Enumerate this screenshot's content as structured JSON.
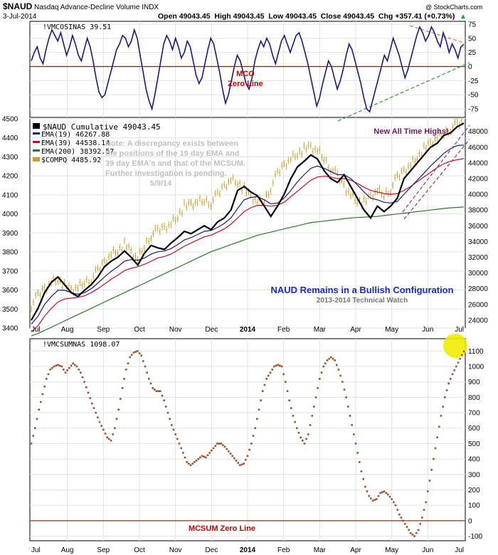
{
  "header": {
    "symbol": "$NAUD",
    "name": "Nasdaq Advance-Decline Volume INDX",
    "date": "3-Jul-2014",
    "ohlc": "Open 49043.45  High 49043.45  Low 49043.45  Close 49043.45  Chg +357.41 (+0.73%)",
    "trend_arrow": "▲",
    "watermark": "@ StockCharts.com"
  },
  "x_axis": {
    "months": [
      "Jul",
      "Aug",
      "Sep",
      "Oct",
      "Nov",
      "Dec",
      "2014",
      "Feb",
      "Mar",
      "Apr",
      "May",
      "Jun",
      "Jul"
    ],
    "bold_label": "2014"
  },
  "chart_data": [
    {
      "type": "line",
      "panel": "top",
      "legend": "!VMCOSINAS 39.51",
      "ylim": [
        -90,
        80
      ],
      "yticks": [
        75,
        50,
        25,
        0,
        -25,
        -50,
        -75
      ],
      "annotations": [
        "MCO",
        "Zero Line"
      ],
      "series": [
        {
          "name": "!VMCOSINAS",
          "color": "#1a1a7c",
          "values": [
            10,
            25,
            35,
            15,
            5,
            30,
            50,
            65,
            55,
            45,
            60,
            40,
            20,
            35,
            55,
            40,
            20,
            10,
            30,
            50,
            35,
            10,
            -20,
            -45,
            -55,
            -50,
            -30,
            -10,
            10,
            30,
            40,
            55,
            50,
            35,
            45,
            65,
            50,
            20,
            -10,
            -40,
            -60,
            -75,
            -50,
            -20,
            10,
            40,
            55,
            45,
            30,
            50,
            35,
            15,
            25,
            45,
            35,
            10,
            -15,
            -30,
            -20,
            5,
            30,
            50,
            40,
            15,
            -10,
            -40,
            -65,
            -50,
            -25,
            0,
            20,
            10,
            -10,
            -30,
            -40,
            -20,
            10,
            30,
            45,
            35,
            50,
            40,
            20,
            5,
            25,
            45,
            55,
            40,
            25,
            40,
            55,
            60,
            45,
            25,
            5,
            -20,
            -45,
            -70,
            -55,
            -30,
            -10,
            10,
            0,
            -20,
            -40,
            -25,
            -5,
            20,
            40,
            30,
            10,
            -10,
            -30,
            -55,
            -75,
            -80,
            -60,
            -40,
            -20,
            0,
            20,
            10,
            30,
            50,
            35,
            20,
            0,
            -20,
            -5,
            15,
            35,
            55,
            70,
            60,
            45,
            55,
            70,
            60,
            45,
            35,
            60,
            45,
            25,
            40,
            30,
            15,
            35,
            39.51
          ]
        }
      ]
    },
    {
      "type": "line",
      "panel": "middle",
      "legend": [
        {
          "label": "$NAUD Cumulative 49043.45",
          "color": "#000000"
        },
        {
          "label": "EMA(19) 46267.88",
          "color": "#1a1a7c"
        },
        {
          "label": "EMA(39) 44538.14",
          "color": "#c0102a"
        },
        {
          "label": "EMA(200) 38392.57",
          "color": "#2a7a2a"
        },
        {
          "label": "$COMPQ 4485.92",
          "color": "#c8a030"
        }
      ],
      "note": [
        "Note: A discrepancy exists between",
        "the positions of the 19 day EMA and",
        "39 day EMA's and that of the MCSUM.",
        "Further investigation is pending.",
        "5/9/14"
      ],
      "annotations": [
        "New All Time Highs!",
        "NAUD Remains in a Bullish Configuration",
        "2013-2014 Technical Watch"
      ],
      "left_axis": {
        "ylim": [
          3400,
          4500
        ],
        "yticks": [
          4500,
          4400,
          4300,
          4200,
          4100,
          4000,
          3900,
          3800,
          3700,
          3600,
          3500,
          3400
        ]
      },
      "right_axis": {
        "ylim": [
          23000,
          49600
        ],
        "yticks": [
          48000,
          46000,
          44000,
          42000,
          40000,
          38000,
          36000,
          34000,
          32000,
          30000,
          28000,
          26000,
          24000
        ]
      },
      "series": [
        {
          "name": "$NAUD Cumulative",
          "axis": "right",
          "color": "#000000",
          "values": [
            24000,
            25500,
            27500,
            28800,
            29500,
            28500,
            27500,
            27000,
            27800,
            28500,
            29500,
            30800,
            31500,
            32000,
            32800,
            32000,
            31000,
            32500,
            33500,
            33200,
            33000,
            33800,
            34500,
            35300,
            35000,
            35500,
            36000,
            35500,
            36500,
            37000,
            38000,
            40500,
            41000,
            40300,
            39800,
            38500,
            37200,
            38500,
            40000,
            42000,
            43500,
            44200,
            45000,
            44500,
            43000,
            42000,
            41500,
            42500,
            41000,
            39500,
            38000,
            37000,
            38500,
            37800,
            38500,
            39500,
            42000,
            43000,
            44000,
            45000,
            46000,
            46500,
            47500,
            47800,
            48600,
            49043
          ]
        },
        {
          "name": "EMA(19)",
          "axis": "right",
          "color": "#1a1a7c",
          "values": [
            23500,
            24500,
            26000,
            27000,
            27800,
            27800,
            27500,
            27300,
            27500,
            28000,
            28700,
            29500,
            30200,
            30800,
            31500,
            31700,
            31600,
            31900,
            32400,
            32700,
            32800,
            33100,
            33600,
            34200,
            34500,
            34900,
            35300,
            35400,
            35800,
            36300,
            37000,
            38200,
            39300,
            39600,
            39700,
            39300,
            38800,
            38900,
            39500,
            40500,
            41600,
            42500,
            43300,
            43600,
            43300,
            42900,
            42500,
            42500,
            42000,
            41200,
            40300,
            39500,
            39300,
            39000,
            38900,
            39100,
            40000,
            40900,
            41800,
            42700,
            43600,
            44400,
            45200,
            45800,
            46200,
            46268
          ]
        },
        {
          "name": "EMA(39)",
          "axis": "right",
          "color": "#c0102a",
          "values": [
            22500,
            23300,
            24500,
            25500,
            26300,
            26700,
            26800,
            26900,
            27100,
            27500,
            28000,
            28600,
            29200,
            29700,
            30300,
            30600,
            30800,
            31100,
            31500,
            31900,
            32100,
            32400,
            32900,
            33400,
            33800,
            34200,
            34600,
            34800,
            35200,
            35600,
            36200,
            37000,
            37800,
            38300,
            38600,
            38600,
            38500,
            38600,
            39000,
            39700,
            40400,
            41100,
            41800,
            42200,
            42300,
            42200,
            42000,
            42000,
            41800,
            41400,
            40900,
            40500,
            40300,
            40100,
            40000,
            40100,
            40500,
            41000,
            41600,
            42200,
            42800,
            43400,
            43900,
            44200,
            44400,
            44538
          ]
        },
        {
          "name": "EMA(200)",
          "axis": "right",
          "color": "#2a7a2a",
          "values": [
            22000,
            22300,
            22700,
            23100,
            23500,
            23900,
            24300,
            24700,
            25100,
            25500,
            25900,
            26300,
            26700,
            27100,
            27500,
            27900,
            28300,
            28700,
            29100,
            29500,
            29900,
            30300,
            30700,
            31100,
            31500,
            31900,
            32300,
            32700,
            33000,
            33300,
            33600,
            33900,
            34200,
            34500,
            34800,
            35000,
            35200,
            35400,
            35600,
            35800,
            36000,
            36200,
            36400,
            36500,
            36600,
            36700,
            36800,
            36900,
            37000,
            37050,
            37100,
            37150,
            37200,
            37300,
            37400,
            37500,
            37600,
            37700,
            37800,
            37900,
            38000,
            38100,
            38200,
            38280,
            38340,
            38393
          ]
        },
        {
          "name": "$COMPQ",
          "axis": "left",
          "color": "#c8a030",
          "values": [
            3520,
            3570,
            3610,
            3640,
            3660,
            3620,
            3600,
            3610,
            3640,
            3660,
            3700,
            3750,
            3790,
            3810,
            3840,
            3800,
            3760,
            3830,
            3890,
            3910,
            3930,
            3950,
            3990,
            4040,
            4050,
            4060,
            4070,
            4060,
            4100,
            4150,
            4180,
            4170,
            4130,
            4090,
            4060,
            4070,
            4140,
            4210,
            4260,
            4290,
            4320,
            4340,
            4350,
            4330,
            4290,
            4240,
            4200,
            4150,
            4100,
            4070,
            4060,
            4090,
            4120,
            4100,
            4130,
            4190,
            4230,
            4260,
            4300,
            4340,
            4370,
            4400,
            4420,
            4450,
            4470,
            4486
          ]
        }
      ]
    },
    {
      "type": "scatter",
      "panel": "bottom",
      "legend": "!VMCSUMNAS 1098.07",
      "ylim": [
        -130,
        1180
      ],
      "yticks": [
        1100,
        1000,
        900,
        800,
        700,
        600,
        500,
        400,
        300,
        200,
        100,
        0,
        -100
      ],
      "annotations": [
        "MCSUM Zero Line"
      ],
      "series": [
        {
          "name": "!VMCSUMNAS",
          "color": "#a0522d",
          "values": [
            500,
            600,
            720,
            820,
            920,
            980,
            1000,
            1010,
            1000,
            960,
            990,
            1020,
            1000,
            960,
            900,
            830,
            760,
            700,
            640,
            590,
            540,
            520,
            600,
            720,
            860,
            980,
            1060,
            1090,
            1100,
            1070,
            1000,
            920,
            860,
            840,
            840,
            780,
            700,
            620,
            560,
            500,
            440,
            380,
            360,
            380,
            400,
            420,
            410,
            440,
            470,
            500,
            500,
            480,
            450,
            420,
            390,
            360,
            370,
            420,
            500,
            600,
            720,
            840,
            920,
            960,
            1000,
            1010,
            1000,
            900,
            780,
            680,
            600,
            540,
            500,
            560,
            680,
            800,
            920,
            1000,
            1040,
            1060,
            1040,
            980,
            900,
            800,
            680,
            560,
            440,
            320,
            220,
            160,
            130,
            140,
            180,
            190,
            170,
            140,
            100,
            40,
            0,
            -40,
            -80,
            -100,
            -60,
            20,
            120,
            260,
            400,
            540,
            680,
            800,
            890,
            950,
            1000,
            1050,
            1098.07
          ]
        }
      ]
    }
  ]
}
